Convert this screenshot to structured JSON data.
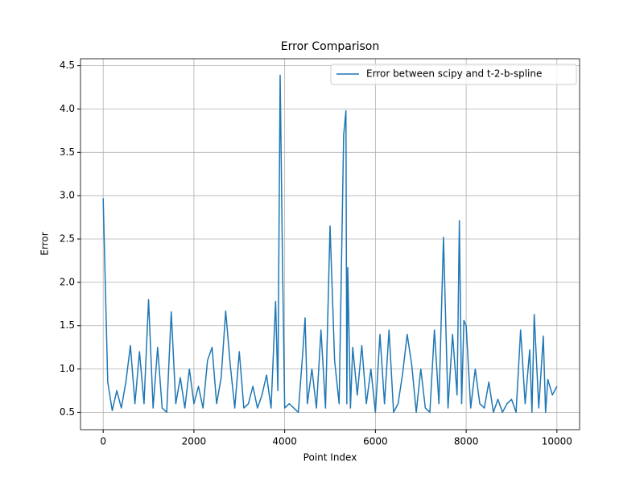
{
  "chart_data": {
    "type": "line",
    "title": "Error Comparison",
    "x_label": "Point Index",
    "y_label": "Error",
    "x": [
      0,
      100,
      200,
      300,
      400,
      500,
      600,
      700,
      800,
      900,
      1000,
      1100,
      1200,
      1300,
      1400,
      1500,
      1600,
      1700,
      1800,
      1900,
      2000,
      2100,
      2200,
      2300,
      2400,
      2500,
      2600,
      2700,
      2800,
      2900,
      3000,
      3100,
      3200,
      3300,
      3400,
      3500,
      3600,
      3700,
      3800,
      3850,
      3900,
      3950,
      4000,
      4100,
      4200,
      4300,
      4400,
      4450,
      4500,
      4600,
      4700,
      4800,
      4900,
      5000,
      5100,
      5200,
      5300,
      5350,
      5370,
      5390,
      5450,
      5500,
      5600,
      5700,
      5800,
      5900,
      6000,
      6100,
      6200,
      6300,
      6400,
      6500,
      6600,
      6700,
      6800,
      6900,
      7000,
      7100,
      7200,
      7300,
      7400,
      7500,
      7600,
      7700,
      7800,
      7850,
      7900,
      7950,
      8000,
      8100,
      8200,
      8300,
      8400,
      8500,
      8600,
      8700,
      8800,
      8900,
      9000,
      9100,
      9200,
      9300,
      9400,
      9450,
      9500,
      9600,
      9700,
      9750,
      9800,
      9900,
      10000
    ],
    "series": [
      {
        "name": "Error between scipy and t-2-b-spline",
        "color": "#1f77b4",
        "values": [
          2.97,
          0.85,
          0.52,
          0.75,
          0.55,
          0.85,
          1.27,
          0.6,
          1.2,
          0.6,
          1.8,
          0.55,
          1.25,
          0.55,
          0.5,
          1.66,
          0.6,
          0.9,
          0.55,
          1.0,
          0.6,
          0.8,
          0.55,
          1.1,
          1.25,
          0.6,
          0.9,
          1.67,
          1.05,
          0.55,
          1.2,
          0.55,
          0.6,
          0.8,
          0.55,
          0.7,
          0.93,
          0.55,
          1.78,
          0.75,
          4.39,
          2.32,
          0.55,
          0.6,
          0.55,
          0.5,
          1.2,
          1.59,
          0.6,
          1.0,
          0.55,
          1.45,
          0.55,
          2.65,
          1.1,
          0.6,
          3.7,
          3.98,
          0.6,
          2.17,
          0.55,
          1.25,
          0.7,
          1.27,
          0.6,
          1.0,
          0.5,
          1.4,
          0.6,
          1.45,
          0.5,
          0.6,
          0.95,
          1.4,
          1.05,
          0.5,
          1.0,
          0.55,
          0.5,
          1.45,
          0.6,
          2.52,
          0.55,
          1.4,
          0.7,
          2.71,
          0.6,
          1.56,
          1.5,
          0.55,
          1.0,
          0.6,
          0.55,
          0.85,
          0.5,
          0.65,
          0.5,
          0.6,
          0.65,
          0.5,
          1.45,
          0.6,
          1.22,
          0.5,
          1.63,
          0.55,
          1.38,
          0.5,
          0.88,
          0.7,
          0.8
        ]
      }
    ],
    "xlim": [
      -500,
      10500
    ],
    "ylim": [
      0.3,
      4.58
    ],
    "xticks": [
      0,
      2000,
      4000,
      6000,
      8000,
      10000
    ],
    "yticks": [
      0.5,
      {
        "value": 1,
        "label": "1.0"
      },
      1.5,
      {
        "value": 2,
        "label": "2.0"
      },
      2.5,
      {
        "value": 3,
        "label": "3.0"
      },
      3.5,
      {
        "value": 4,
        "label": "4.0"
      },
      4.5
    ],
    "grid": true,
    "legend": "upper right"
  }
}
